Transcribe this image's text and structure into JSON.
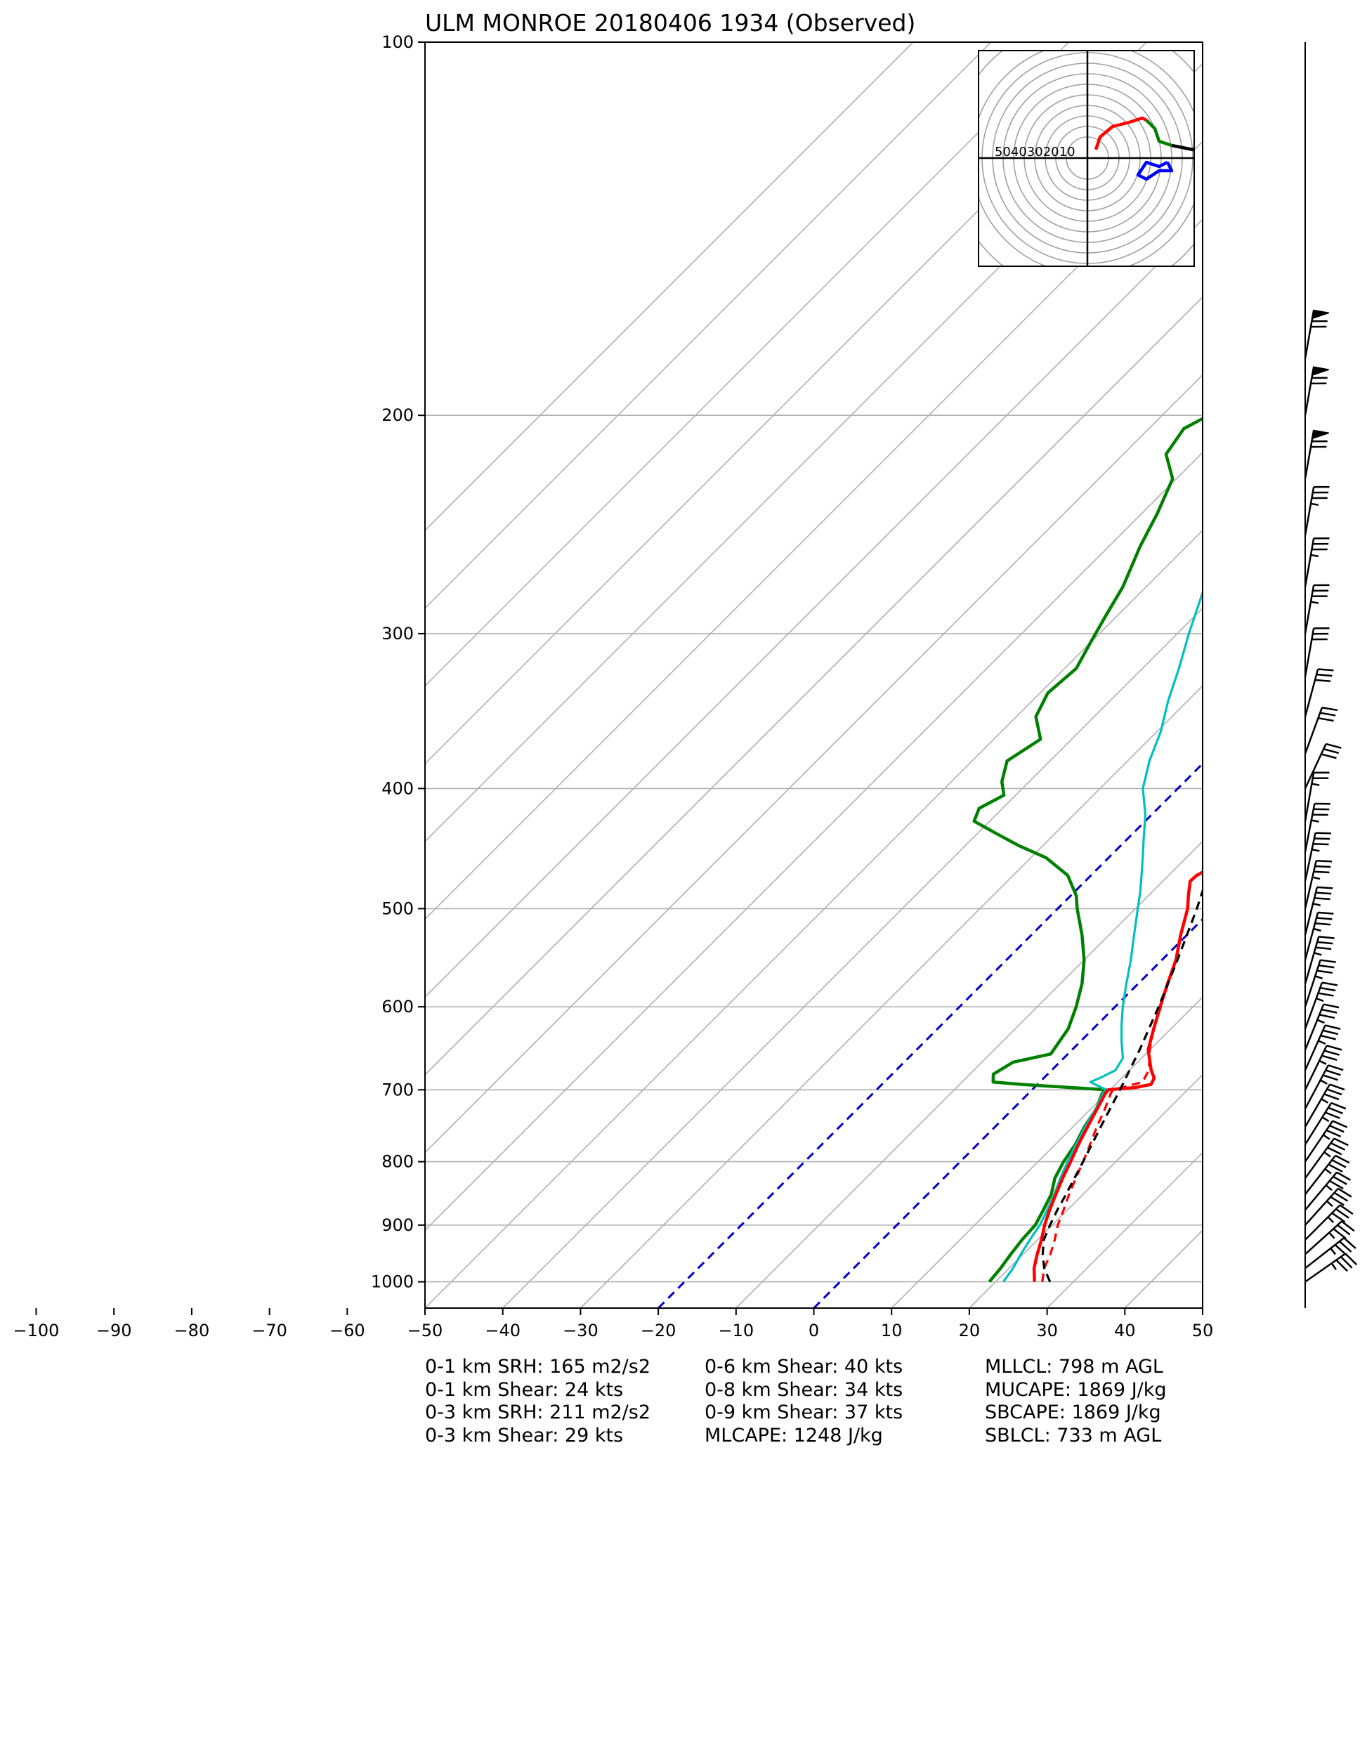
{
  "title": "ULM MONROE 20180406 1934   (Observed)",
  "chart_data": {
    "type": "line",
    "title": "ULM MONROE 20180406 1934   (Observed)",
    "xlabel": "",
    "ylabel": "",
    "x_axis": {
      "min": -100,
      "max": 50,
      "ticks": [
        -100,
        -90,
        -80,
        -70,
        -60,
        -50,
        -40,
        -30,
        -20,
        -10,
        0,
        10,
        20,
        30,
        40,
        50
      ]
    },
    "y_axis": {
      "scale": "log",
      "inverted": true,
      "min": 100,
      "max": 1050,
      "ticks": [
        100,
        200,
        300,
        400,
        500,
        600,
        700,
        800,
        900,
        1000
      ]
    },
    "grid": true,
    "colors": {
      "temperature": "#ff0000",
      "dewpoint": "#008000",
      "wetbulb": "#00bfbf",
      "parcel": "#000000",
      "virtual_temperature": "#ff0000",
      "isotherm_highlight": "#0000cc",
      "grid": "#b0b0b0"
    },
    "highlighted_isotherms": [
      -20,
      0
    ],
    "series": [
      {
        "kind": "temperature",
        "points": [
          [
            1000,
            25
          ],
          [
            975,
            23.2
          ],
          [
            950,
            21.8
          ],
          [
            925,
            20.5
          ],
          [
            900,
            19
          ],
          [
            875,
            17.7
          ],
          [
            850,
            16.5
          ],
          [
            825,
            15.3
          ],
          [
            800,
            14.2
          ],
          [
            775,
            13
          ],
          [
            750,
            11.9
          ],
          [
            725,
            10.8
          ],
          [
            705,
            9.9
          ],
          [
            700,
            9.8
          ],
          [
            697,
            13
          ],
          [
            693,
            14.6
          ],
          [
            685,
            14.2
          ],
          [
            675,
            12.8
          ],
          [
            650,
            9.8
          ],
          [
            625,
            7.8
          ],
          [
            600,
            5.8
          ],
          [
            575,
            3.8
          ],
          [
            550,
            1.8
          ],
          [
            525,
            -0.8
          ],
          [
            500,
            -3.3
          ],
          [
            487,
            -5
          ],
          [
            475,
            -6.5
          ],
          [
            470,
            -6.4
          ],
          [
            455,
            -4.5
          ],
          [
            440,
            -5.6
          ],
          [
            428,
            -5.4
          ],
          [
            410,
            -6.5
          ],
          [
            400,
            -8
          ],
          [
            390,
            -10
          ],
          [
            375,
            -12.2
          ],
          [
            350,
            -15.7
          ],
          [
            325,
            -19.2
          ],
          [
            310,
            -21
          ],
          [
            300,
            -22.2
          ],
          [
            275,
            -25.5
          ],
          [
            250,
            -29.8
          ],
          [
            225,
            -34.5
          ],
          [
            200,
            -40.4
          ],
          [
            190,
            -43
          ],
          [
            180,
            -45.8
          ]
        ]
      },
      {
        "kind": "virtual_temperature",
        "points": [
          [
            1000,
            26
          ],
          [
            975,
            24.5
          ],
          [
            950,
            23.5
          ],
          [
            925,
            22.2
          ],
          [
            900,
            20.7
          ],
          [
            875,
            19.5
          ],
          [
            850,
            18.2
          ],
          [
            825,
            17
          ],
          [
            800,
            15.8
          ],
          [
            775,
            14.5
          ],
          [
            750,
            13.1
          ],
          [
            725,
            11.8
          ],
          [
            705,
            10.6
          ],
          [
            700,
            10.4
          ],
          [
            690,
            13.2
          ],
          [
            675,
            12.5
          ],
          [
            650,
            10
          ],
          [
            625,
            7.8
          ],
          [
            600,
            5.9
          ]
        ]
      },
      {
        "kind": "dewpoint",
        "points": [
          [
            1000,
            19.2
          ],
          [
            975,
            18.9
          ],
          [
            950,
            18.4
          ],
          [
            925,
            18
          ],
          [
            900,
            17.8
          ],
          [
            875,
            16.9
          ],
          [
            850,
            15.9
          ],
          [
            825,
            14.3
          ],
          [
            800,
            13.3
          ],
          [
            775,
            12.6
          ],
          [
            750,
            11.5
          ],
          [
            725,
            10.7
          ],
          [
            705,
            9.5
          ],
          [
            700,
            9.5
          ],
          [
            693,
            -2
          ],
          [
            690,
            -6
          ],
          [
            680,
            -7
          ],
          [
            665,
            -6
          ],
          [
            655,
            -2.2
          ],
          [
            625,
            -3.2
          ],
          [
            600,
            -5
          ],
          [
            575,
            -7.2
          ],
          [
            550,
            -10
          ],
          [
            525,
            -13.5
          ],
          [
            500,
            -17.5
          ],
          [
            488,
            -19.3
          ],
          [
            470,
            -23
          ],
          [
            455,
            -28
          ],
          [
            445,
            -33
          ],
          [
            435,
            -37.5
          ],
          [
            425,
            -42
          ],
          [
            415,
            -43
          ],
          [
            405,
            -41.5
          ],
          [
            395,
            -43.5
          ],
          [
            380,
            -45.5
          ],
          [
            365,
            -44
          ],
          [
            350,
            -47.5
          ],
          [
            335,
            -49
          ],
          [
            320,
            -48.5
          ],
          [
            305,
            -50
          ],
          [
            290,
            -51.5
          ],
          [
            275,
            -53
          ],
          [
            255,
            -56
          ],
          [
            240,
            -58
          ],
          [
            225,
            -60.5
          ],
          [
            215,
            -64.5
          ],
          [
            205,
            -65.5
          ],
          [
            200,
            -64
          ],
          [
            195,
            -64
          ],
          [
            190,
            -64.5
          ],
          [
            185,
            -64
          ],
          [
            180,
            -63
          ]
        ]
      },
      {
        "kind": "wetbulb",
        "points": [
          [
            1000,
            21
          ],
          [
            975,
            20.5
          ],
          [
            950,
            19.7
          ],
          [
            925,
            19
          ],
          [
            900,
            18.4
          ],
          [
            875,
            17.4
          ],
          [
            850,
            16.3
          ],
          [
            825,
            15
          ],
          [
            800,
            13.8
          ],
          [
            775,
            12.7
          ],
          [
            750,
            11.6
          ],
          [
            725,
            10.6
          ],
          [
            705,
            9.6
          ],
          [
            700,
            9.6
          ],
          [
            695,
            8
          ],
          [
            690,
            6.5
          ],
          [
            685,
            7.2
          ],
          [
            675,
            8.2
          ],
          [
            660,
            7.6
          ],
          [
            640,
            5.3
          ],
          [
            620,
            3.1
          ],
          [
            600,
            1
          ],
          [
            575,
            -1.5
          ],
          [
            550,
            -4
          ],
          [
            525,
            -6.8
          ],
          [
            500,
            -9.7
          ],
          [
            485,
            -11.5
          ],
          [
            470,
            -13.5
          ],
          [
            455,
            -15.6
          ],
          [
            440,
            -17.8
          ],
          [
            420,
            -20.8
          ],
          [
            400,
            -24.5
          ],
          [
            380,
            -27.2
          ],
          [
            360,
            -29.5
          ],
          [
            340,
            -32.5
          ],
          [
            320,
            -35.3
          ],
          [
            300,
            -38.5
          ],
          [
            275,
            -42.5
          ],
          [
            250,
            -47
          ],
          [
            225,
            -51.8
          ],
          [
            200,
            -56.9
          ],
          [
            190,
            -59
          ],
          [
            180,
            -61.4
          ]
        ]
      },
      {
        "kind": "parcel",
        "points": [
          [
            1000,
            27
          ],
          [
            975,
            24.5
          ],
          [
            950,
            22.5
          ],
          [
            925,
            20.8
          ],
          [
            900,
            19.7
          ],
          [
            875,
            18.7
          ],
          [
            850,
            17.8
          ],
          [
            800,
            15.8
          ],
          [
            750,
            13.6
          ],
          [
            700,
            11.3
          ],
          [
            650,
            8.7
          ],
          [
            600,
            5.6
          ],
          [
            550,
            2
          ],
          [
            500,
            -2.1
          ],
          [
            450,
            -7
          ],
          [
            400,
            -12.8
          ],
          [
            350,
            -19.9
          ],
          [
            300,
            -28.6
          ],
          [
            250,
            -39.5
          ],
          [
            200,
            -53.2
          ],
          [
            182,
            -59
          ]
        ]
      }
    ],
    "hodograph": {
      "rings": [
        10,
        20,
        30,
        40,
        50
      ],
      "ring_labels": [
        "50",
        "40",
        "30",
        "20",
        "10"
      ],
      "segments": [
        {
          "color": "#ff0000",
          "points": [
            [
              2,
              2
            ],
            [
              3,
              5
            ],
            [
              6,
              7.5
            ],
            [
              10,
              8.5
            ],
            [
              13,
              9.5
            ],
            [
              14,
              9
            ]
          ]
        },
        {
          "color": "#008000",
          "points": [
            [
              14,
              9
            ],
            [
              16,
              7
            ],
            [
              17,
              4
            ],
            [
              20,
              3
            ]
          ]
        },
        {
          "color": "#000000",
          "points": [
            [
              20,
              3
            ],
            [
              25,
              2
            ],
            [
              29,
              4
            ],
            [
              29.5,
              5
            ]
          ]
        },
        {
          "color": "#0000ff",
          "points": [
            [
              19,
              -1
            ],
            [
              20,
              -3
            ],
            [
              17,
              -3
            ],
            [
              14,
              -5
            ],
            [
              12,
              -4
            ],
            [
              14,
              -1
            ],
            [
              17,
              -2
            ],
            [
              19,
              -1
            ]
          ]
        }
      ]
    },
    "wind_barbs": [
      {
        "p": 1000,
        "dir": 235,
        "spd": 35
      },
      {
        "p": 975,
        "dir": 232,
        "spd": 35
      },
      {
        "p": 950,
        "dir": 228,
        "spd": 35
      },
      {
        "p": 925,
        "dir": 225,
        "spd": 35
      },
      {
        "p": 900,
        "dir": 222,
        "spd": 35
      },
      {
        "p": 875,
        "dir": 220,
        "spd": 35
      },
      {
        "p": 850,
        "dir": 218,
        "spd": 35
      },
      {
        "p": 825,
        "dir": 216,
        "spd": 35
      },
      {
        "p": 800,
        "dir": 214,
        "spd": 35
      },
      {
        "p": 775,
        "dir": 212,
        "spd": 35
      },
      {
        "p": 750,
        "dir": 210,
        "spd": 35
      },
      {
        "p": 725,
        "dir": 208,
        "spd": 35
      },
      {
        "p": 700,
        "dir": 206,
        "spd": 35
      },
      {
        "p": 675,
        "dir": 204,
        "spd": 35
      },
      {
        "p": 650,
        "dir": 202,
        "spd": 35
      },
      {
        "p": 625,
        "dir": 200,
        "spd": 35
      },
      {
        "p": 600,
        "dir": 198,
        "spd": 35
      },
      {
        "p": 575,
        "dir": 196,
        "spd": 35
      },
      {
        "p": 550,
        "dir": 195,
        "spd": 35
      },
      {
        "p": 525,
        "dir": 194,
        "spd": 35
      },
      {
        "p": 500,
        "dir": 193,
        "spd": 35
      },
      {
        "p": 475,
        "dir": 192,
        "spd": 35
      },
      {
        "p": 450,
        "dir": 191,
        "spd": 35
      },
      {
        "p": 425,
        "dir": 190,
        "spd": 25
      },
      {
        "p": 400,
        "dir": 205,
        "spd": 30
      },
      {
        "p": 375,
        "dir": 200,
        "spd": 30
      },
      {
        "p": 350,
        "dir": 195,
        "spd": 30
      },
      {
        "p": 325,
        "dir": 190,
        "spd": 30
      },
      {
        "p": 300,
        "dir": 190,
        "spd": 35
      },
      {
        "p": 275,
        "dir": 190,
        "spd": 35
      },
      {
        "p": 250,
        "dir": 190,
        "spd": 35
      },
      {
        "p": 225,
        "dir": 190,
        "spd": 70
      },
      {
        "p": 200,
        "dir": 190,
        "spd": 70
      },
      {
        "p": 180,
        "dir": 190,
        "spd": 70
      }
    ]
  },
  "stats": {
    "col1": [
      "0-1 km SRH: 165 m2/s2",
      "0-1 km Shear: 24 kts",
      "0-3 km SRH: 211 m2/s2",
      "0-3 km Shear: 29 kts"
    ],
    "col2": [
      "0-6 km Shear: 40 kts",
      "0-8 km Shear: 34 kts",
      "0-9 km Shear: 37 kts",
      "MLCAPE: 1248 J/kg"
    ],
    "col3": [
      "MLLCL: 798 m AGL",
      "MUCAPE: 1869 J/kg",
      "SBCAPE: 1869 J/kg",
      "SBLCL: 733 m AGL"
    ]
  }
}
